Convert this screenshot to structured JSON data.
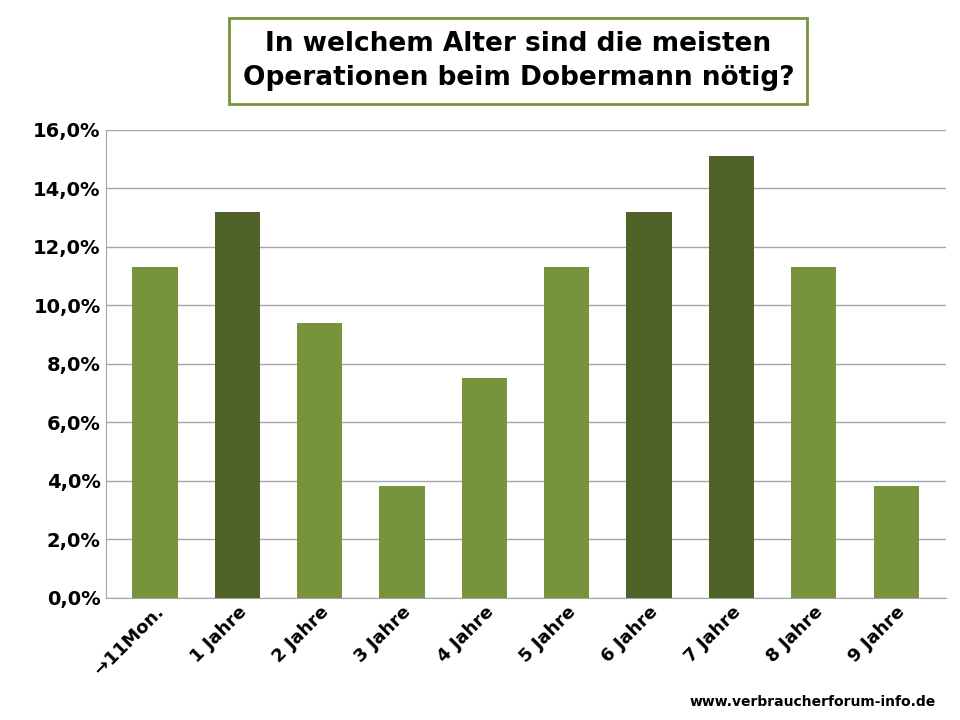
{
  "chart_data": {
    "type": "bar",
    "title": "In welchem Alter sind die meisten\nOperationen beim Dobermann nötig?",
    "categories": [
      "→11Mon.",
      "1 Jahre",
      "2 Jahre",
      "3 Jahre",
      "4 Jahre",
      "5 Jahre",
      "6 Jahre",
      "7 Jahre",
      "8 Jahre",
      "9 Jahre"
    ],
    "values": [
      11.3,
      13.2,
      9.4,
      3.8,
      7.5,
      11.3,
      13.2,
      15.1,
      11.3,
      3.8
    ],
    "colors": [
      "#77933c",
      "#4f6228",
      "#77933c",
      "#77933c",
      "#77933c",
      "#77933c",
      "#4f6228",
      "#4f6228",
      "#77933c",
      "#77933c"
    ],
    "ylim": [
      0,
      16
    ],
    "yticks": [
      {
        "value": 0,
        "label": "0,0%"
      },
      {
        "value": 2,
        "label": "2,0%"
      },
      {
        "value": 4,
        "label": "4,0%"
      },
      {
        "value": 6,
        "label": "6,0%"
      },
      {
        "value": 8,
        "label": "8,0%"
      },
      {
        "value": 10,
        "label": "10,0%"
      },
      {
        "value": 12,
        "label": "12,0%"
      },
      {
        "value": 14,
        "label": "14,0%"
      },
      {
        "value": 16,
        "label": "16,0%"
      }
    ],
    "grid": true,
    "annotations": [
      "www.verbraucherforum-info.de"
    ]
  }
}
